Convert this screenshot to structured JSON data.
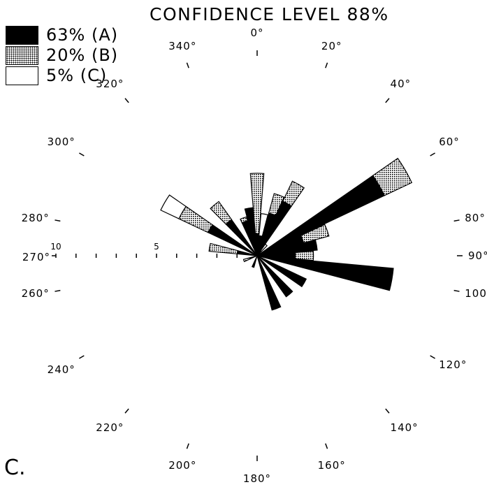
{
  "chart_data": {
    "type": "rose",
    "title": "CONFIDENCE LEVEL 88%",
    "panel_label": "C.",
    "colors": {
      "A": "#000000",
      "B": "hatched-dots",
      "C": "#ffffff"
    },
    "legend": [
      {
        "key": "A",
        "label": "63% (A)"
      },
      {
        "key": "B",
        "label": "20% (B)"
      },
      {
        "key": "C",
        "label": "5%  (C)"
      }
    ],
    "direction_ticks": [
      {
        "deg": 0,
        "label": "0°"
      },
      {
        "deg": 20,
        "label": "20°"
      },
      {
        "deg": 40,
        "label": "40°"
      },
      {
        "deg": 60,
        "label": "60°"
      },
      {
        "deg": 80,
        "label": "80°"
      },
      {
        "deg": 90,
        "label": "90°"
      },
      {
        "deg": 100,
        "label": "100°"
      },
      {
        "deg": 120,
        "label": "120°"
      },
      {
        "deg": 140,
        "label": "140°"
      },
      {
        "deg": 160,
        "label": "160°"
      },
      {
        "deg": 180,
        "label": "180°"
      },
      {
        "deg": 200,
        "label": "200°"
      },
      {
        "deg": 220,
        "label": "220°"
      },
      {
        "deg": 240,
        "label": "240°"
      },
      {
        "deg": 260,
        "label": "260°"
      },
      {
        "deg": 270,
        "label": "270°"
      },
      {
        "deg": 280,
        "label": "280°"
      },
      {
        "deg": 300,
        "label": "300°"
      },
      {
        "deg": 320,
        "label": "320°"
      },
      {
        "deg": 340,
        "label": "340°"
      }
    ],
    "radial_scale": {
      "max": 10,
      "labels": [
        "5",
        "10"
      ]
    },
    "sectors": [
      {
        "deg": 0,
        "A": 1.1,
        "B": 3.0,
        "C": 0.0
      },
      {
        "deg": 10,
        "A": 1.0,
        "B": 0.0,
        "C": 1.1
      },
      {
        "deg": 20,
        "A": 2.2,
        "B": 1.0,
        "C": 0.0
      },
      {
        "deg": 30,
        "A": 3.0,
        "B": 1.1,
        "C": 0.0
      },
      {
        "deg": 40,
        "A": 0.3,
        "B": 0.0,
        "C": 0.4
      },
      {
        "deg": 60,
        "A": 7.0,
        "B": 1.5,
        "C": 0.0
      },
      {
        "deg": 70,
        "A": 2.4,
        "B": 1.3,
        "C": 0.0
      },
      {
        "deg": 80,
        "A": 3.0,
        "B": 0.0,
        "C": 0.0
      },
      {
        "deg": 90,
        "A": 1.9,
        "B": 0.9,
        "C": 0.0
      },
      {
        "deg": 100,
        "A": 6.8,
        "B": 0.0,
        "C": 0.0
      },
      {
        "deg": 120,
        "A": 2.7,
        "B": 0.0,
        "C": 0.0
      },
      {
        "deg": 140,
        "A": 2.5,
        "B": 0.0,
        "C": 0.0
      },
      {
        "deg": 160,
        "A": 2.8,
        "B": 0.0,
        "C": 0.0
      },
      {
        "deg": 200,
        "A": 0.6,
        "B": 0.0,
        "C": 0.0
      },
      {
        "deg": 250,
        "A": 0.4,
        "B": 0.3,
        "C": 0.0
      },
      {
        "deg": 280,
        "A": 1.0,
        "B": 1.4,
        "C": 0.0
      },
      {
        "deg": 300,
        "A": 2.7,
        "B": 1.6,
        "C": 1.0
      },
      {
        "deg": 320,
        "A": 2.2,
        "B": 1.1,
        "C": 0.0
      },
      {
        "deg": 340,
        "A": 1.8,
        "B": 0.2,
        "C": 0.0
      },
      {
        "deg": 350,
        "A": 2.4,
        "B": 0.0,
        "C": 0.0
      }
    ]
  }
}
